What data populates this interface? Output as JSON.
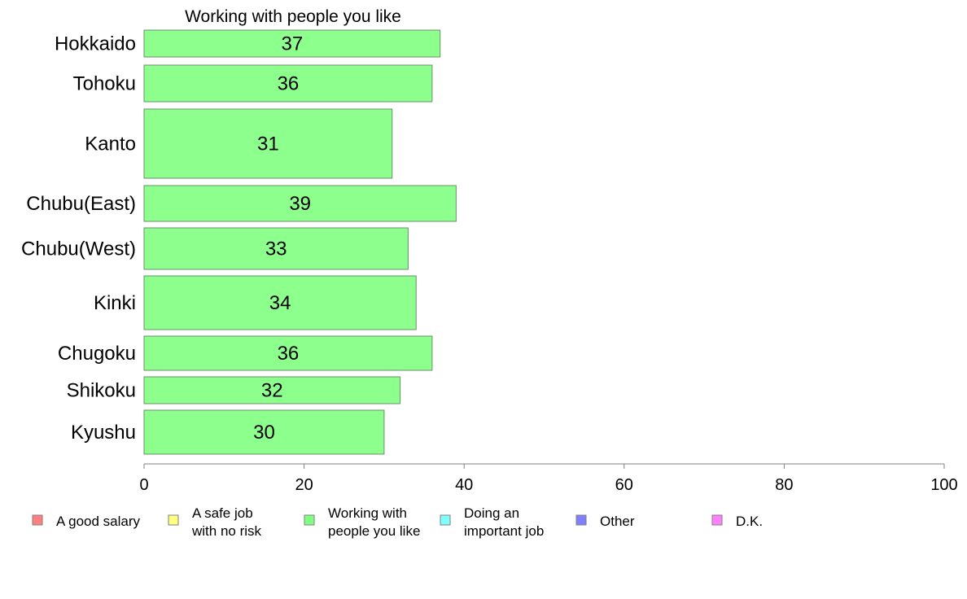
{
  "chart_data": {
    "type": "bar",
    "orientation": "horizontal",
    "title": "Working with people you like",
    "categories": [
      "Hokkaido",
      "Tohoku",
      "Kanto",
      "Chubu(East)",
      "Chubu(West)",
      "Kinki",
      "Chugoku",
      "Shikoku",
      "Kyushu"
    ],
    "values": [
      37,
      36,
      31,
      39,
      33,
      34,
      36,
      32,
      30
    ],
    "data_labels": [
      "37",
      "36",
      "31",
      "39",
      "33",
      "34",
      "36",
      "32",
      "30"
    ],
    "bar_color": "#8cff8c",
    "xlim": [
      0,
      100
    ],
    "x_ticks": [
      "0",
      "20",
      "40",
      "60",
      "80",
      "100"
    ],
    "legend_position": "bottom",
    "legend": [
      {
        "label_lines": [
          "A good salary"
        ],
        "color": "#ff8080"
      },
      {
        "label_lines": [
          "A safe job",
          "with no risk"
        ],
        "color": "#ffff80"
      },
      {
        "label_lines": [
          "Working with",
          "people you like"
        ],
        "color": "#80ff80"
      },
      {
        "label_lines": [
          "Doing an",
          "important job"
        ],
        "color": "#80ffff"
      },
      {
        "label_lines": [
          "Other"
        ],
        "color": "#8080ff"
      },
      {
        "label_lines": [
          "D.K."
        ],
        "color": "#ff80ff"
      }
    ]
  }
}
